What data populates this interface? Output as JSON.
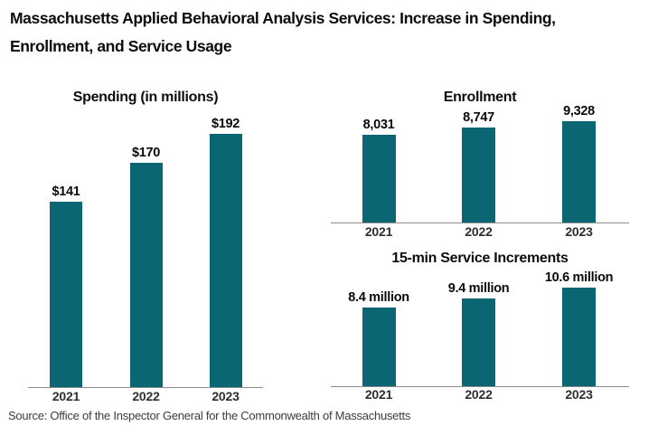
{
  "title": {
    "lines": [
      "Massachusetts Applied Behavioral Analysis Services: Increase in Spending,",
      "Enrollment, and Service Usage"
    ]
  },
  "source": "Source: Office of the Inspector General for the Commonwealth of Massachusetts",
  "colors": {
    "bar": "#0a6672",
    "axis_line": "#8c8c8c",
    "title_text": "#0d0d0d",
    "source_text": "#3c3c3c"
  },
  "chart_data": [
    {
      "type": "bar",
      "title": "Spending (in millions)",
      "categories": [
        "2021",
        "2022",
        "2023"
      ],
      "values": [
        141,
        170,
        192
      ],
      "data_labels": [
        "$141",
        "$170",
        "$192"
      ],
      "ylim": [
        0,
        200
      ],
      "grid": false,
      "legend": false
    },
    {
      "type": "bar",
      "title": "Enrollment",
      "categories": [
        "2021",
        "2022",
        "2023"
      ],
      "values": [
        8031,
        8747,
        9328
      ],
      "data_labels": [
        "8,031",
        "8,747",
        "9,328"
      ],
      "ylim": [
        0,
        10000
      ],
      "grid": false,
      "legend": false
    },
    {
      "type": "bar",
      "title": "15-min Service Increments",
      "categories": [
        "2021",
        "2022",
        "2023"
      ],
      "values": [
        8400000,
        9400000,
        10600000
      ],
      "data_labels": [
        "8.4 million",
        "9.4 million",
        "10.6 million"
      ],
      "ylim": [
        0,
        11000000
      ],
      "grid": false,
      "legend": false
    }
  ]
}
